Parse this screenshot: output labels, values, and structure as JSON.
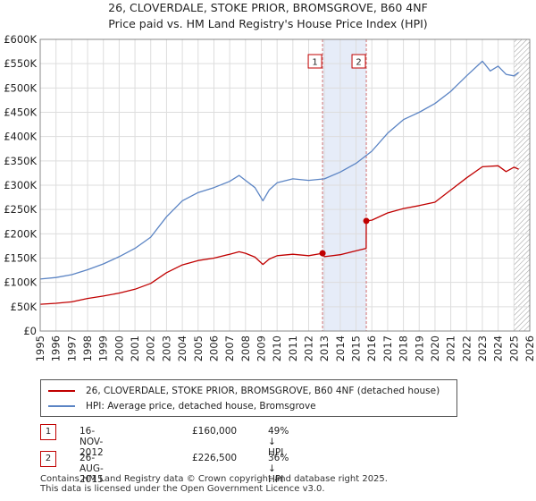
{
  "title_line1": "26, CLOVERDALE, STOKE PRIOR, BROMSGROVE, B60 4NF",
  "title_line2": "Price paid vs. HM Land Registry's House Price Index (HPI)",
  "colors": {
    "property": "#c00000",
    "hpi": "#5b84c4",
    "shade": "#e6ecf8",
    "grid": "#dddddd"
  },
  "legend": {
    "property_label": "26, CLOVERDALE, STOKE PRIOR, BROMSGROVE, B60 4NF (detached house)",
    "hpi_label": "HPI: Average price, detached house, Bromsgrove"
  },
  "sales": [
    {
      "num": "1",
      "date": "16-NOV-2012",
      "price": "£160,000",
      "hpi_diff": "49% ↓ HPI"
    },
    {
      "num": "2",
      "date": "26-AUG-2015",
      "price": "£226,500",
      "hpi_diff": "36% ↓ HPI"
    }
  ],
  "footer": {
    "line1": "Contains HM Land Registry data © Crown copyright and database right 2025.",
    "line2": "This data is licensed under the Open Government Licence v3.0."
  },
  "chart_data": {
    "type": "line",
    "title": "Price paid vs. HM Land Registry's House Price Index (HPI)",
    "xlabel": "",
    "ylabel": "",
    "xlim": [
      1995,
      2026
    ],
    "ylim": [
      0,
      600000
    ],
    "x_ticks": [
      1995,
      1996,
      1997,
      1998,
      1999,
      2000,
      2001,
      2002,
      2003,
      2004,
      2005,
      2006,
      2007,
      2008,
      2009,
      2010,
      2011,
      2012,
      2013,
      2014,
      2015,
      2016,
      2017,
      2018,
      2019,
      2020,
      2021,
      2022,
      2023,
      2024,
      2025,
      2026
    ],
    "y_ticks": [
      0,
      50000,
      100000,
      150000,
      200000,
      250000,
      300000,
      350000,
      400000,
      450000,
      500000,
      550000,
      600000
    ],
    "y_tick_labels": [
      "£0",
      "£50K",
      "£100K",
      "£150K",
      "£200K",
      "£250K",
      "£300K",
      "£350K",
      "£400K",
      "£450K",
      "£500K",
      "£550K",
      "£600K"
    ],
    "shaded_range": [
      2012.88,
      2015.65
    ],
    "hatched_from": 2025.0,
    "series": [
      {
        "name": "26, CLOVERDALE, STOKE PRIOR, BROMSGROVE, B60 4NF (detached house)",
        "x": [
          1995,
          1996,
          1997,
          1998,
          1999,
          2000,
          2001,
          2002,
          2003,
          2004,
          2005,
          2006,
          2007,
          2007.6,
          2008,
          2008.6,
          2009.1,
          2009.5,
          2010,
          2011,
          2012,
          2012.88,
          2013,
          2014,
          2015,
          2015.64,
          2015.65,
          2016,
          2017,
          2018,
          2019,
          2020,
          2021,
          2022,
          2023,
          2024,
          2024.5,
          2025,
          2025.3
        ],
        "values": [
          55000,
          57000,
          60000,
          67000,
          72000,
          78000,
          86000,
          98000,
          120000,
          136000,
          145000,
          150000,
          158000,
          163000,
          160000,
          152000,
          137000,
          148000,
          155000,
          158000,
          155000,
          160000,
          153000,
          157000,
          165000,
          170000,
          226500,
          228000,
          243000,
          252000,
          258000,
          265000,
          290000,
          315000,
          338000,
          340000,
          328000,
          337000,
          333000
        ]
      },
      {
        "name": "HPI: Average price, detached house, Bromsgrove",
        "x": [
          1995,
          1996,
          1997,
          1998,
          1999,
          2000,
          2001,
          2002,
          2003,
          2004,
          2005,
          2006,
          2007,
          2007.6,
          2008,
          2008.6,
          2009.1,
          2009.5,
          2010,
          2011,
          2012,
          2013,
          2014,
          2015,
          2016,
          2017,
          2018,
          2019,
          2020,
          2021,
          2022,
          2023,
          2023.5,
          2024,
          2024.5,
          2025,
          2025.3
        ],
        "values": [
          107000,
          110000,
          116000,
          126000,
          138000,
          153000,
          170000,
          193000,
          235000,
          268000,
          285000,
          295000,
          308000,
          320000,
          310000,
          295000,
          268000,
          290000,
          305000,
          313000,
          310000,
          313000,
          327000,
          345000,
          370000,
          407000,
          435000,
          450000,
          468000,
          493000,
          525000,
          555000,
          535000,
          545000,
          528000,
          525000,
          532000
        ]
      }
    ],
    "sale_markers": [
      {
        "label": "1",
        "x": 2012.88,
        "y": 160000
      },
      {
        "label": "2",
        "x": 2015.65,
        "y": 226500
      }
    ]
  }
}
